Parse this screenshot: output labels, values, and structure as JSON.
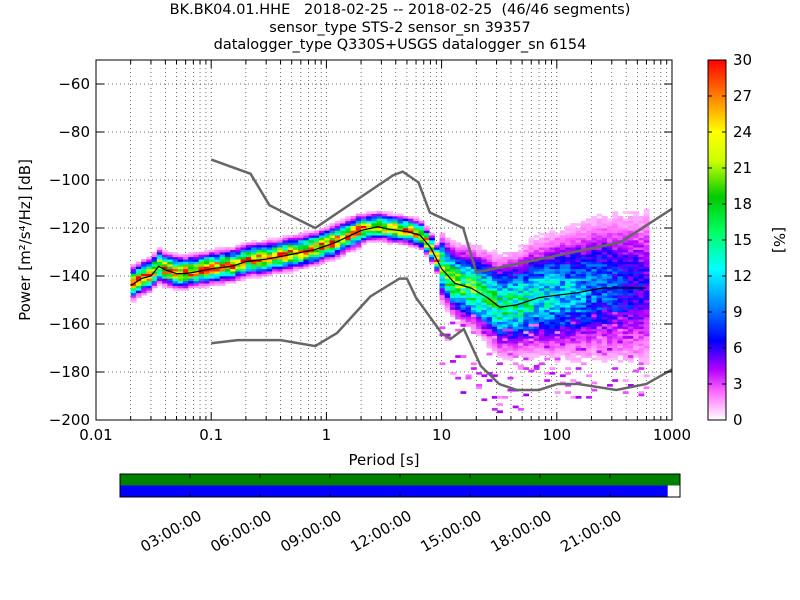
{
  "title_lines": [
    "BK.BK04.01.HHE   2018-02-25 -- 2018-02-25  (46/46 segments)",
    "sensor_type STS-2 sensor_sn 39357",
    "datalogger_type Q330S+USGS datalogger_sn 6154"
  ],
  "chart_data": {
    "type": "heatmap",
    "title": "BK.BK04.01.HHE   2018-02-25 -- 2018-02-25  (46/46 segments)",
    "xlabel": "Period [s]",
    "ylabel": "Power [m²/s⁴/Hz] [dB]",
    "xscale": "log",
    "xlim": [
      0.01,
      1000
    ],
    "ylim": [
      -200,
      -50
    ],
    "xticks": [
      "0.01",
      "0.1",
      "1",
      "10",
      "100",
      "1000"
    ],
    "yticks": [
      "−200",
      "−180",
      "−160",
      "−140",
      "−120",
      "−100",
      "−80",
      "−60"
    ],
    "colorbar": {
      "label": "[%]",
      "min": 0,
      "max": 30,
      "ticks": [
        "0",
        "3",
        "6",
        "9",
        "12",
        "15",
        "18",
        "21",
        "24",
        "27",
        "30"
      ]
    },
    "grid": true,
    "noise_models": {
      "high": {
        "x": [
          0.1,
          0.22,
          0.32,
          0.8,
          3.8,
          4.6,
          6.3,
          7.9,
          15.4,
          20,
          354.8,
          1000
        ],
        "y": [
          -91.5,
          -97.4,
          -110.5,
          -120,
          -98,
          -96.5,
          -101,
          -113.5,
          -120,
          -138.5,
          -126,
          -112
        ]
      },
      "low": {
        "x": [
          0.1,
          0.17,
          0.4,
          0.8,
          1.24,
          2.4,
          4.3,
          5,
          6,
          10,
          12,
          15.6,
          21.9,
          31.6,
          45,
          70,
          101,
          154,
          328,
          600,
          1000
        ],
        "y": [
          -168,
          -166.7,
          -166.7,
          -169.2,
          -163.7,
          -148.6,
          -141.1,
          -141.1,
          -149,
          -163.8,
          -166.2,
          -162.1,
          -177.5,
          -185,
          -187.5,
          -187.5,
          -185,
          -185,
          -187.5,
          -185,
          -178.9
        ]
      }
    },
    "mode_curve": {
      "x": [
        0.02,
        0.025,
        0.03,
        0.035,
        0.04,
        0.05,
        0.06,
        0.08,
        0.1,
        0.15,
        0.2,
        0.3,
        0.5,
        0.8,
        1.2,
        2,
        2.8,
        3.5,
        5,
        6.5,
        8,
        10,
        13,
        18,
        25,
        32,
        45,
        70,
        100,
        150,
        250,
        400,
        600
      ],
      "y": [
        -144,
        -141,
        -140,
        -136,
        -137.5,
        -139,
        -139,
        -138,
        -137,
        -136,
        -134,
        -133,
        -131,
        -129,
        -126,
        -121,
        -119.5,
        -120.5,
        -121.5,
        -123,
        -128,
        -137,
        -143,
        -145,
        -149,
        -153,
        -152,
        -149,
        -148,
        -147,
        -145,
        -145,
        -145
      ]
    },
    "timeline": {
      "tick_labels": [
        "03:00:00",
        "06:00:00",
        "09:00:00",
        "12:00:00",
        "15:00:00",
        "18:00:00",
        "21:00:00"
      ],
      "data_fraction": 0.978,
      "top_color": "#008000",
      "bottom_color": "#0000ff"
    },
    "colors": {
      "noise_model": "#666666",
      "mode_curve": "#000000"
    }
  }
}
